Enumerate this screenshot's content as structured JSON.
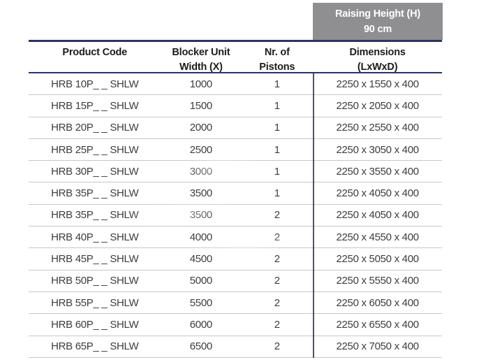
{
  "colors": {
    "navy_rule": "#2b3563",
    "corner_box_bg": "#8f8f92",
    "row_divider": "#c7c7c7",
    "body_text": "#3d3d3d",
    "header_text": "#1c1c1c",
    "corner_box_text": "#ffffff"
  },
  "raising_height_box": {
    "line1": "Raising Height (H)",
    "line2": "90 cm"
  },
  "table": {
    "headers": [
      {
        "line1": "Product Code",
        "line2": ""
      },
      {
        "line1": "Blocker Unit",
        "line2": "Width (X)"
      },
      {
        "line1": "Nr. of",
        "line2": "Pistons"
      },
      {
        "line1": "Dimensions",
        "line2": "(LxWxD)"
      }
    ],
    "rows": [
      [
        "HRB 10P_ _ SHLW",
        "1000",
        "1",
        "2250 x 1550 x 400"
      ],
      [
        "HRB 15P_ _ SHLW",
        "1500",
        "1",
        "2250 x 2050 x 400"
      ],
      [
        "HRB 20P_ _ SHLW",
        "2000",
        "1",
        "2250 x 2550 x 400"
      ],
      [
        "HRB 25P_ _ SHLW",
        "2500",
        "1",
        "2250 x 3050 x 400"
      ],
      [
        "HRB 30P_ _ SHLW",
        "3000",
        "1",
        "2250 x 3550 x 400"
      ],
      [
        "HRB 35P_ _ SHLW",
        "3500",
        "1",
        "2250 x 4050 x 400"
      ],
      [
        "HRB 35P_ _ SHLW",
        "3500",
        "2",
        "2250 x 4050 x 400"
      ],
      [
        "HRB 40P_ _ SHLW",
        "4000",
        "2",
        "2250 x 4550 x 400"
      ],
      [
        "HRB 45P_ _ SHLW",
        "4500",
        "2",
        "2250 x 5050 x 400"
      ],
      [
        "HRB 50P_ _ SHLW",
        "5000",
        "2",
        "2250 x 5550 x 400"
      ],
      [
        "HRB 55P_ _ SHLW",
        "5500",
        "2",
        "2250 x 6050 x 400"
      ],
      [
        "HRB 60P_ _ SHLW",
        "6000",
        "2",
        "2250 x 6550 x 400"
      ],
      [
        "HRB 65P_ _ SHLW",
        "6500",
        "2",
        "2250 x 7050 x 400"
      ]
    ]
  }
}
